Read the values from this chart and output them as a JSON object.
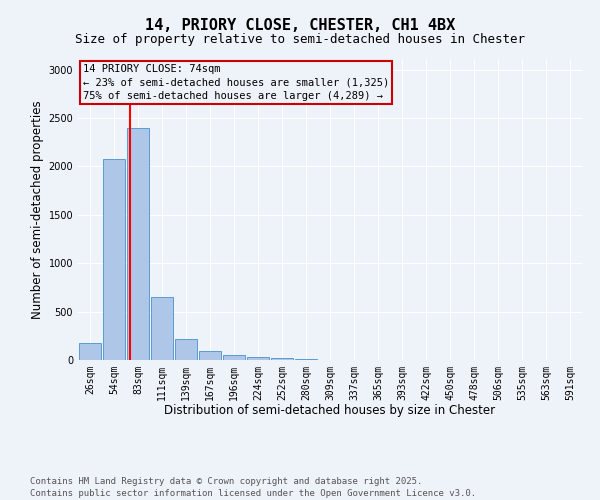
{
  "title": "14, PRIORY CLOSE, CHESTER, CH1 4BX",
  "subtitle": "Size of property relative to semi-detached houses in Chester",
  "xlabel": "Distribution of semi-detached houses by size in Chester",
  "ylabel": "Number of semi-detached properties",
  "bar_labels": [
    "26sqm",
    "54sqm",
    "83sqm",
    "111sqm",
    "139sqm",
    "167sqm",
    "196sqm",
    "224sqm",
    "252sqm",
    "280sqm",
    "309sqm",
    "337sqm",
    "365sqm",
    "393sqm",
    "422sqm",
    "450sqm",
    "478sqm",
    "506sqm",
    "535sqm",
    "563sqm",
    "591sqm"
  ],
  "bar_values": [
    175,
    2075,
    2400,
    650,
    215,
    90,
    50,
    35,
    25,
    15,
    5,
    2,
    1,
    0,
    0,
    0,
    0,
    0,
    0,
    0,
    0
  ],
  "bar_color": "#aec6e8",
  "bar_edge_color": "#5b9bd5",
  "background_color": "#eef2f9",
  "grid_color": "#ffffff",
  "ylim": [
    0,
    3100
  ],
  "yticks": [
    0,
    500,
    1000,
    1500,
    2000,
    2500,
    3000
  ],
  "property_line_x": 1.67,
  "property_label": "14 PRIORY CLOSE: 74sqm",
  "smaller_pct": "23% of semi-detached houses are smaller (1,325)",
  "larger_pct": "75% of semi-detached houses are larger (4,289)",
  "annotation_box_color": "#cc0000",
  "footer_line1": "Contains HM Land Registry data © Crown copyright and database right 2025.",
  "footer_line2": "Contains public sector information licensed under the Open Government Licence v3.0.",
  "title_fontsize": 11,
  "subtitle_fontsize": 9,
  "axis_label_fontsize": 8.5,
  "tick_fontsize": 7,
  "annotation_fontsize": 7.5,
  "footer_fontsize": 6.5
}
